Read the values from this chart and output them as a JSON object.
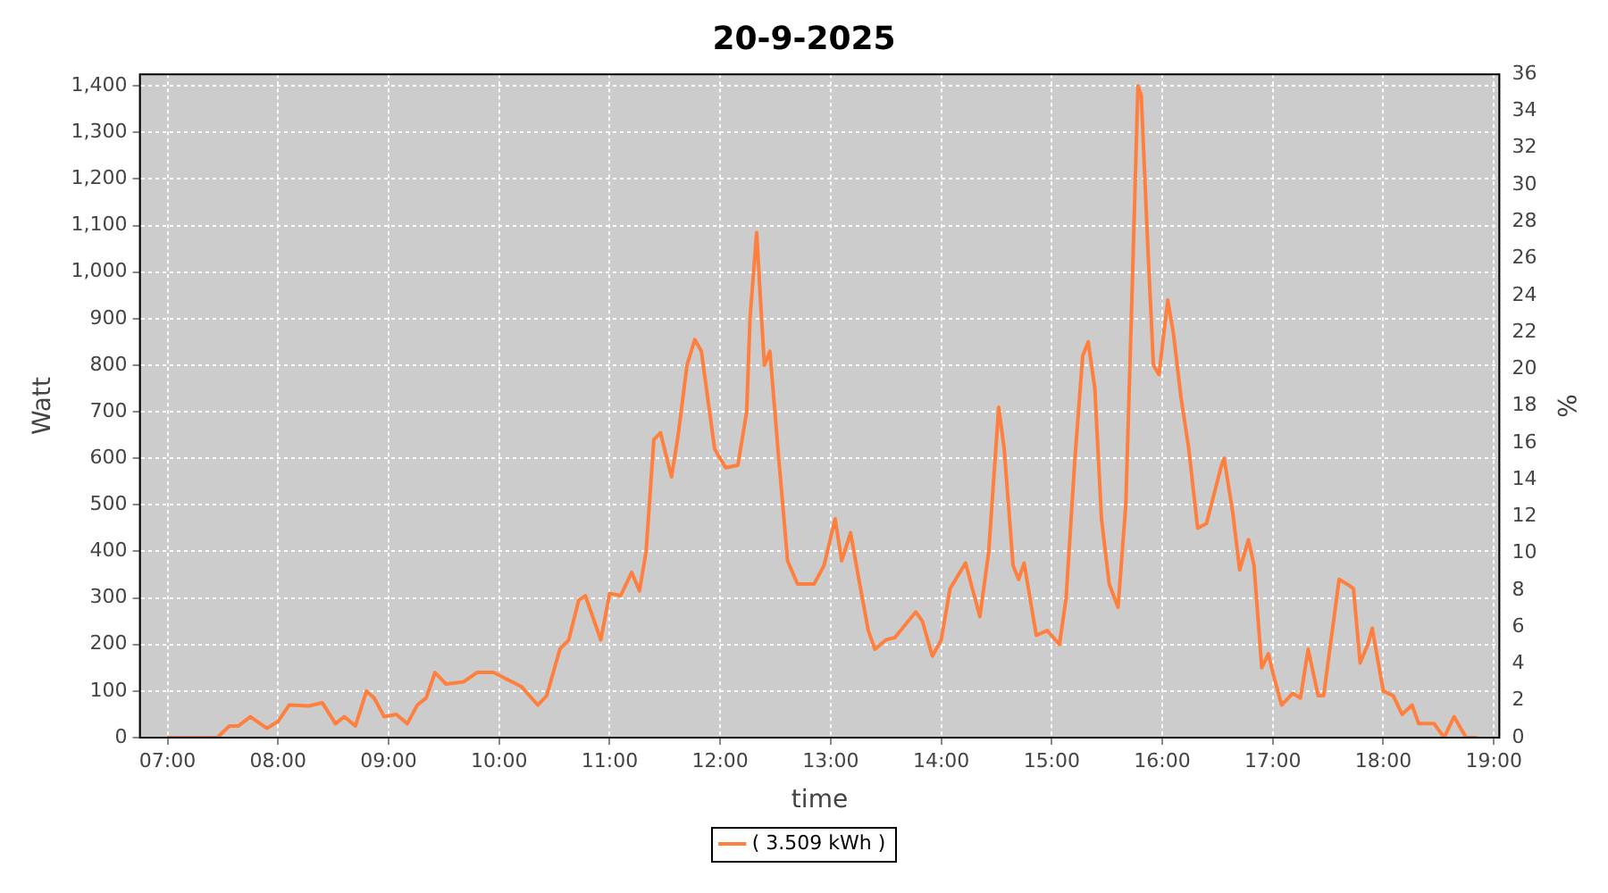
{
  "chart_data": {
    "type": "line",
    "title": "20-9-2025",
    "xlabel": "time",
    "ylabel": "Watt",
    "y2label": "%",
    "series": [
      {
        "name": "( 3.509 kWh )",
        "color": "#ff7f3f",
        "x": [
          7.0,
          7.45,
          7.56,
          7.64,
          7.75,
          7.9,
          8.0,
          8.1,
          8.28,
          8.4,
          8.52,
          8.6,
          8.7,
          8.8,
          8.87,
          8.96,
          9.07,
          9.17,
          9.26,
          9.34,
          9.42,
          9.52,
          9.68,
          9.8,
          9.95,
          10.2,
          10.35,
          10.43,
          10.55,
          10.63,
          10.72,
          10.78,
          10.92,
          11.0,
          11.1,
          11.2,
          11.27,
          11.33,
          11.4,
          11.46,
          11.56,
          11.62,
          11.7,
          11.77,
          11.83,
          11.95,
          12.05,
          12.16,
          12.24,
          12.27,
          12.33,
          12.37,
          12.4,
          12.45,
          12.53,
          12.61,
          12.7,
          12.85,
          12.94,
          13.04,
          13.1,
          13.18,
          13.24,
          13.34,
          13.4,
          13.5,
          13.58,
          13.77,
          13.83,
          13.92,
          14.0,
          14.08,
          14.22,
          14.35,
          14.43,
          14.52,
          14.57,
          14.65,
          14.7,
          14.75,
          14.86,
          14.96,
          15.07,
          15.13,
          15.21,
          15.28,
          15.33,
          15.39,
          15.45,
          15.52,
          15.6,
          15.67,
          15.72,
          15.78,
          15.81,
          15.87,
          15.92,
          15.97,
          16.05,
          16.1,
          16.17,
          16.24,
          16.32,
          16.4,
          16.53,
          16.56,
          16.64,
          16.7,
          16.78,
          16.83,
          16.9,
          16.96,
          17.0,
          17.08,
          17.18,
          17.25,
          17.32,
          17.41,
          17.46,
          17.6,
          17.67,
          17.73,
          17.79,
          17.86,
          17.9,
          17.94,
          18.0,
          18.09,
          18.17,
          18.26,
          18.32,
          18.46,
          18.55,
          18.64,
          18.7,
          18.75,
          18.85
        ],
        "values": [
          0,
          0,
          25,
          25,
          45,
          20,
          35,
          70,
          68,
          75,
          30,
          45,
          25,
          100,
          85,
          45,
          50,
          30,
          70,
          85,
          140,
          115,
          120,
          140,
          140,
          110,
          70,
          90,
          190,
          210,
          295,
          305,
          210,
          310,
          305,
          355,
          315,
          400,
          640,
          655,
          560,
          650,
          800,
          855,
          830,
          620,
          580,
          585,
          700,
          900,
          1085,
          920,
          800,
          830,
          600,
          380,
          330,
          330,
          370,
          470,
          380,
          440,
          360,
          230,
          190,
          210,
          215,
          270,
          250,
          175,
          210,
          320,
          375,
          260,
          400,
          710,
          620,
          370,
          340,
          375,
          220,
          230,
          200,
          300,
          600,
          820,
          850,
          750,
          470,
          330,
          280,
          500,
          900,
          1400,
          1380,
          1050,
          800,
          780,
          940,
          870,
          730,
          620,
          450,
          460,
          580,
          600,
          480,
          360,
          425,
          370,
          150,
          180,
          140,
          70,
          95,
          85,
          190,
          90,
          90,
          340,
          330,
          320,
          160,
          200,
          235,
          180,
          100,
          90,
          50,
          70,
          30,
          30,
          0,
          45,
          20,
          0,
          0
        ]
      }
    ],
    "xlim": [
      6.75,
      19.05
    ],
    "xticks": [
      {
        "value": 7,
        "label": "07:00"
      },
      {
        "value": 8,
        "label": "08:00"
      },
      {
        "value": 9,
        "label": "09:00"
      },
      {
        "value": 10,
        "label": "10:00"
      },
      {
        "value": 11,
        "label": "11:00"
      },
      {
        "value": 12,
        "label": "12:00"
      },
      {
        "value": 13,
        "label": "13:00"
      },
      {
        "value": 14,
        "label": "14:00"
      },
      {
        "value": 15,
        "label": "15:00"
      },
      {
        "value": 16,
        "label": "16:00"
      },
      {
        "value": 17,
        "label": "17:00"
      },
      {
        "value": 18,
        "label": "18:00"
      },
      {
        "value": 19,
        "label": "19:00"
      }
    ],
    "ylim": [
      0,
      1425
    ],
    "yticks": [
      0,
      100,
      200,
      300,
      400,
      500,
      600,
      700,
      800,
      900,
      {
        "value": 1000,
        "label": "1,000"
      },
      {
        "value": 1100,
        "label": "1,100"
      },
      {
        "value": 1200,
        "label": "1,200"
      },
      {
        "value": 1300,
        "label": "1,300"
      },
      {
        "value": 1400,
        "label": "1,400"
      }
    ],
    "y2lim": [
      0,
      36
    ],
    "y2ticks": [
      0,
      2,
      4,
      6,
      8,
      10,
      12,
      14,
      16,
      18,
      20,
      22,
      24,
      26,
      28,
      30,
      32,
      34,
      36
    ],
    "grid": true,
    "legend": "bottom",
    "marker": "none",
    "line_style": "solid"
  }
}
